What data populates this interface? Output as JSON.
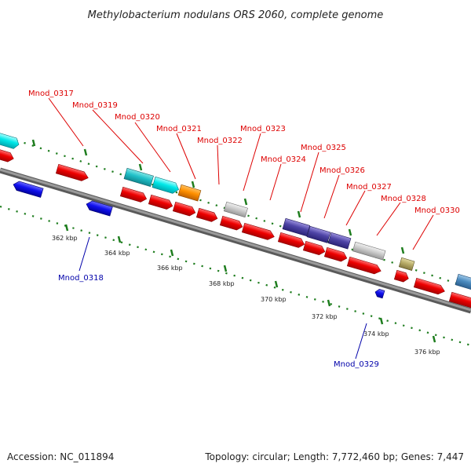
{
  "title": "Methylobacterium nodulans ORS 2060, complete genome",
  "footer": {
    "accession": "Accession: NC_011894",
    "summary": "Topology: circular; Length: 7,772,460 bp; Genes: 7,447"
  },
  "colors": {
    "forward_label": "#dd0000",
    "reverse_label": "#0000aa",
    "backbone": "#808080",
    "tick_mark": "#1e7d1e"
  },
  "scale_ticks": [
    "362 kbp",
    "364 kbp",
    "366 kbp",
    "368 kbp",
    "370 kbp",
    "372 kbp",
    "374 kbp",
    "376 kbp"
  ],
  "gene_labels": [
    {
      "text": "Mnod_0317",
      "strand": "forward"
    },
    {
      "text": "Mnod_0318",
      "strand": "reverse"
    },
    {
      "text": "Mnod_0319",
      "strand": "forward"
    },
    {
      "text": "Mnod_0320",
      "strand": "forward"
    },
    {
      "text": "Mnod_0321",
      "strand": "forward"
    },
    {
      "text": "Mnod_0322",
      "strand": "forward"
    },
    {
      "text": "Mnod_0323",
      "strand": "forward"
    },
    {
      "text": "Mnod_0324",
      "strand": "forward"
    },
    {
      "text": "Mnod_0325",
      "strand": "forward"
    },
    {
      "text": "Mnod_0326",
      "strand": "forward"
    },
    {
      "text": "Mnod_0327",
      "strand": "forward"
    },
    {
      "text": "Mnod_0328",
      "strand": "forward"
    },
    {
      "text": "Mnod_0329",
      "strand": "reverse"
    },
    {
      "text": "Mnod_0330",
      "strand": "forward"
    }
  ]
}
